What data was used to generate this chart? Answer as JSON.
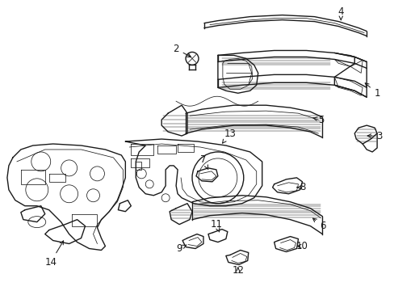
{
  "background_color": "#ffffff",
  "line_color": "#1a1a1a",
  "figsize": [
    4.89,
    3.6
  ],
  "dpi": 100,
  "label_fontsize": 8.5
}
